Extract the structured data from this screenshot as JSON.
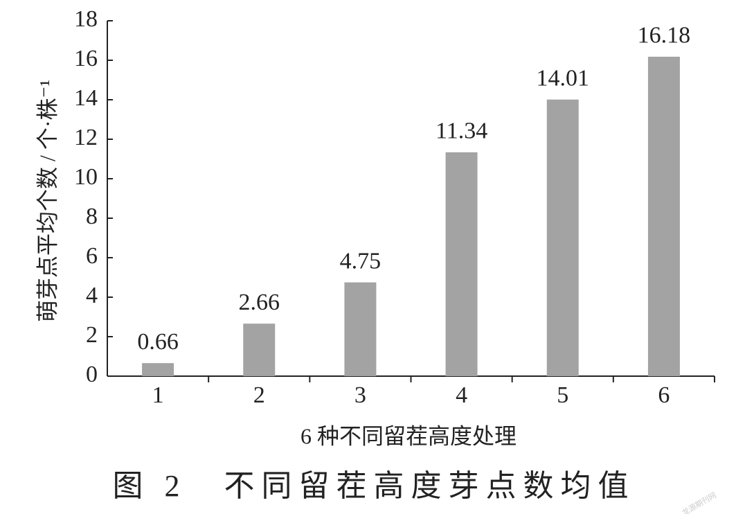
{
  "chart_data": {
    "type": "bar",
    "y_label": "萌芽点平均个数 / 个·株⁻¹",
    "x_label": "6 种不同留茬高度处理",
    "caption": "图 2　不同留茬高度芽点数均值",
    "watermark": "龙源期刊网",
    "categories": [
      "1",
      "2",
      "3",
      "4",
      "5",
      "6"
    ],
    "values": [
      0.66,
      2.66,
      4.75,
      11.34,
      14.01,
      16.18
    ],
    "color": "#a3a3a3",
    "ylim": [
      0,
      18
    ],
    "yticks": [
      0,
      2,
      4,
      6,
      8,
      10,
      12,
      14,
      16,
      18
    ],
    "grid": false
  }
}
